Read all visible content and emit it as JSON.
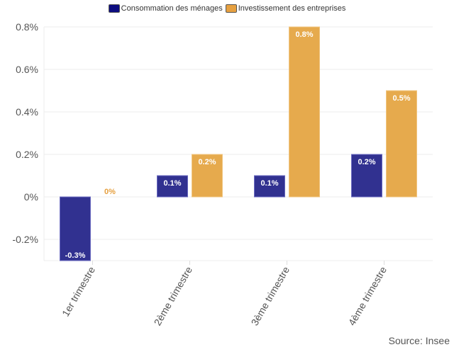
{
  "chart_data": {
    "type": "bar",
    "categories": [
      "1er trimestre",
      "2ème trimestre",
      "3ème trimestre",
      "4ème trimestre"
    ],
    "series": [
      {
        "name": "Consommation des ménages",
        "values": [
          -0.3,
          0.1,
          0.1,
          0.2
        ],
        "labels": [
          "-0.3%",
          "0.1%",
          "0.1%",
          "0.2%"
        ],
        "color": "#313190"
      },
      {
        "name": "Investissement des entreprises",
        "values": [
          0,
          0.2,
          0.8,
          0.5
        ],
        "labels": [
          "0%",
          "0.2%",
          "0.8%",
          "0.5%"
        ],
        "color": "#e6aa4d"
      }
    ],
    "yticks": [
      "-0.2%",
      "0%",
      "0.2%",
      "0.4%",
      "0.6%",
      "0.8%"
    ],
    "ytick_values": [
      -0.2,
      0,
      0.2,
      0.4,
      0.6,
      0.8
    ],
    "ylim": [
      -0.3,
      0.8
    ],
    "grid": true,
    "legend": "top-center",
    "xlabel": "",
    "ylabel": ""
  },
  "source": "Source: Insee"
}
